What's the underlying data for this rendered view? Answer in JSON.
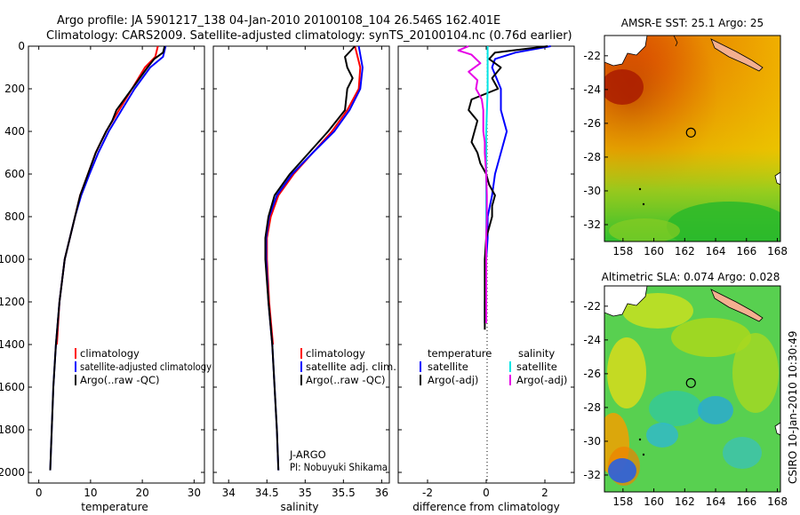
{
  "header": {
    "line1": "Argo profile: JA 5901217_138 04-Jan-2010 20100108_104 26.546S 162.401E",
    "line2": "Climatology: CARS2009. Satellite-adjusted climatology: synTS_20100104.nc (0.76d earlier)"
  },
  "colors": {
    "climatology": "#ff0000",
    "satellite": "#0000ff",
    "argo": "#000000",
    "sal_satellite": "#00e5e5",
    "sal_argo": "#e600e6"
  },
  "chart_data": [
    {
      "id": "temperature",
      "type": "line",
      "title": "",
      "xlabel": "temperature",
      "ylabel": "",
      "xlim": [
        -2,
        32
      ],
      "ylim": [
        2050,
        0
      ],
      "xticks": [
        "0",
        "10",
        "20",
        "30"
      ],
      "yticks": [
        "0",
        "200",
        "400",
        "600",
        "800",
        "1000",
        "1200",
        "1400",
        "1600",
        "1800",
        "2000"
      ],
      "legend": [
        "climatology",
        "satellite-adjusted climatology",
        "Argo(..raw -QC)"
      ],
      "series": [
        {
          "name": "climatology",
          "depth": [
            0,
            50,
            100,
            200,
            300,
            400,
            500,
            600,
            700,
            800,
            1000,
            1200,
            1400
          ],
          "values": [
            23.0,
            22.5,
            20.5,
            18.0,
            15.5,
            13.0,
            11.0,
            9.5,
            8.0,
            7.0,
            5.0,
            4.0,
            3.5
          ]
        },
        {
          "name": "satellite-adjusted climatology",
          "depth": [
            0,
            50,
            100,
            200,
            300,
            400,
            500,
            600,
            700,
            800,
            1000,
            1200,
            1400,
            1600,
            1800,
            1990
          ],
          "values": [
            24.5,
            24.0,
            21.5,
            18.5,
            16.0,
            13.5,
            11.5,
            9.8,
            8.2,
            7.0,
            5.0,
            4.0,
            3.3,
            2.8,
            2.5,
            2.2
          ]
        },
        {
          "name": "Argo(..raw -QC)",
          "depth": [
            0,
            30,
            60,
            100,
            150,
            200,
            300,
            350,
            400,
            450,
            500,
            600,
            700,
            800,
            1000,
            1200,
            1400,
            1600,
            1800,
            1990
          ],
          "values": [
            24.3,
            24.0,
            22.3,
            21.0,
            19.5,
            18.0,
            15.0,
            14.2,
            13.0,
            12.0,
            11.0,
            9.5,
            8.0,
            7.0,
            5.0,
            4.0,
            3.3,
            2.8,
            2.5,
            2.2
          ]
        }
      ]
    },
    {
      "id": "salinity",
      "type": "line",
      "xlabel": "salinity",
      "xlim": [
        33.8,
        36.1
      ],
      "ylim": [
        2050,
        0
      ],
      "xticks": [
        "34",
        "34.5",
        "35",
        "35.5",
        "36"
      ],
      "legend": [
        "climatology",
        "satellite adj. clim.",
        "Argo(..raw -QC)"
      ],
      "annotation": [
        "J-ARGO",
        "PI: Nobuyuki Shikama"
      ],
      "series": [
        {
          "name": "climatology",
          "depth": [
            0,
            100,
            200,
            300,
            400,
            500,
            600,
            700,
            800,
            900,
            1000,
            1200,
            1400
          ],
          "values": [
            35.65,
            35.72,
            35.7,
            35.55,
            35.35,
            35.1,
            34.85,
            34.65,
            34.55,
            34.5,
            34.5,
            34.53,
            34.58
          ]
        },
        {
          "name": "satellite adj. clim.",
          "depth": [
            0,
            100,
            200,
            300,
            400,
            500,
            600,
            700,
            800,
            900,
            1000,
            1200,
            1400,
            1600,
            1800,
            1990
          ],
          "values": [
            35.7,
            35.75,
            35.72,
            35.58,
            35.38,
            35.1,
            34.83,
            34.63,
            34.53,
            34.49,
            34.49,
            34.52,
            34.57,
            34.6,
            34.63,
            34.65
          ]
        },
        {
          "name": "Argo(..raw -QC)",
          "depth": [
            0,
            50,
            100,
            150,
            200,
            300,
            400,
            500,
            600,
            700,
            800,
            900,
            1000,
            1200,
            1400,
            1600,
            1800,
            1990
          ],
          "values": [
            35.65,
            35.52,
            35.55,
            35.62,
            35.55,
            35.52,
            35.3,
            35.05,
            34.8,
            34.6,
            34.52,
            34.48,
            34.48,
            34.52,
            34.57,
            34.6,
            34.63,
            34.65
          ]
        }
      ]
    },
    {
      "id": "difference",
      "type": "line",
      "xlabel": "difference from climatology",
      "xlim": [
        -3,
        3
      ],
      "ylim": [
        2050,
        0
      ],
      "xticks": [
        "-2",
        "0",
        "2"
      ],
      "legend_temperature_title": "temperature",
      "legend_salinity_title": "salinity",
      "legend": [
        "satellite",
        "Argo(-adj)",
        "satellite",
        "Argo(-adj)"
      ],
      "series": [
        {
          "name": "temperature satellite",
          "depth": [
            0,
            30,
            60,
            100,
            200,
            300,
            400,
            500,
            600,
            700,
            800,
            900,
            1000,
            1200,
            1300
          ],
          "values": [
            2.2,
            1.0,
            0.3,
            0.2,
            0.5,
            0.5,
            0.7,
            0.5,
            0.3,
            0.2,
            0.05,
            0.05,
            0.0,
            -0.05,
            -0.05
          ]
        },
        {
          "name": "temperature Argo(-adj)",
          "depth": [
            0,
            30,
            60,
            100,
            150,
            200,
            250,
            300,
            350,
            400,
            450,
            500,
            550,
            600,
            650,
            700,
            750,
            800,
            900,
            1000,
            1200,
            1330
          ],
          "values": [
            2.1,
            0.3,
            0.1,
            0.5,
            0.2,
            0.4,
            -0.5,
            -0.6,
            -0.3,
            -0.4,
            -0.5,
            -0.3,
            -0.2,
            0.0,
            0.1,
            0.3,
            0.2,
            0.2,
            0.0,
            -0.05,
            -0.05,
            -0.05
          ]
        },
        {
          "name": "salinity satellite",
          "depth": [
            0,
            200,
            400,
            600,
            800,
            1000,
            1200,
            1300
          ],
          "values": [
            0.05,
            0.05,
            0.0,
            0.0,
            0.0,
            0.0,
            0.0,
            0.0
          ]
        },
        {
          "name": "salinity Argo(-adj)",
          "depth": [
            0,
            20,
            40,
            80,
            120,
            160,
            200,
            250,
            300,
            350,
            400,
            450,
            500,
            600,
            700,
            800,
            900,
            1000,
            1100,
            1200,
            1300
          ],
          "values": [
            -0.6,
            -0.95,
            -0.5,
            -0.2,
            -0.6,
            -0.3,
            -0.35,
            -0.15,
            -0.1,
            -0.1,
            -0.1,
            -0.05,
            -0.05,
            0.0,
            0.02,
            0.02,
            0.0,
            0.0,
            0.0,
            0.0,
            0.0
          ]
        }
      ]
    }
  ],
  "maps": [
    {
      "id": "sst-map",
      "title": "AMSR-E SST: 25.1 Argo: 25",
      "xticks": [
        "158",
        "160",
        "162",
        "164",
        "166",
        "168"
      ],
      "yticks": [
        "-22",
        "-24",
        "-26",
        "-28",
        "-30",
        "-32"
      ],
      "xlim": [
        156.8,
        168.2
      ],
      "ylim": [
        -33,
        -20.8
      ],
      "argo_lon": 162.4,
      "argo_lat": -26.55
    },
    {
      "id": "sla-map",
      "title": "Altimetric SLA: 0.074 Argo: 0.028",
      "xticks": [
        "158",
        "160",
        "162",
        "164",
        "166",
        "168"
      ],
      "yticks": [
        "-22",
        "-24",
        "-26",
        "-28",
        "-30",
        "-32"
      ],
      "xlim": [
        156.8,
        168.2
      ],
      "ylim": [
        -33,
        -20.8
      ],
      "argo_lon": 162.4,
      "argo_lat": -26.55
    }
  ],
  "side_label": "CSIRO 10-Jan-2010 10:30:49"
}
